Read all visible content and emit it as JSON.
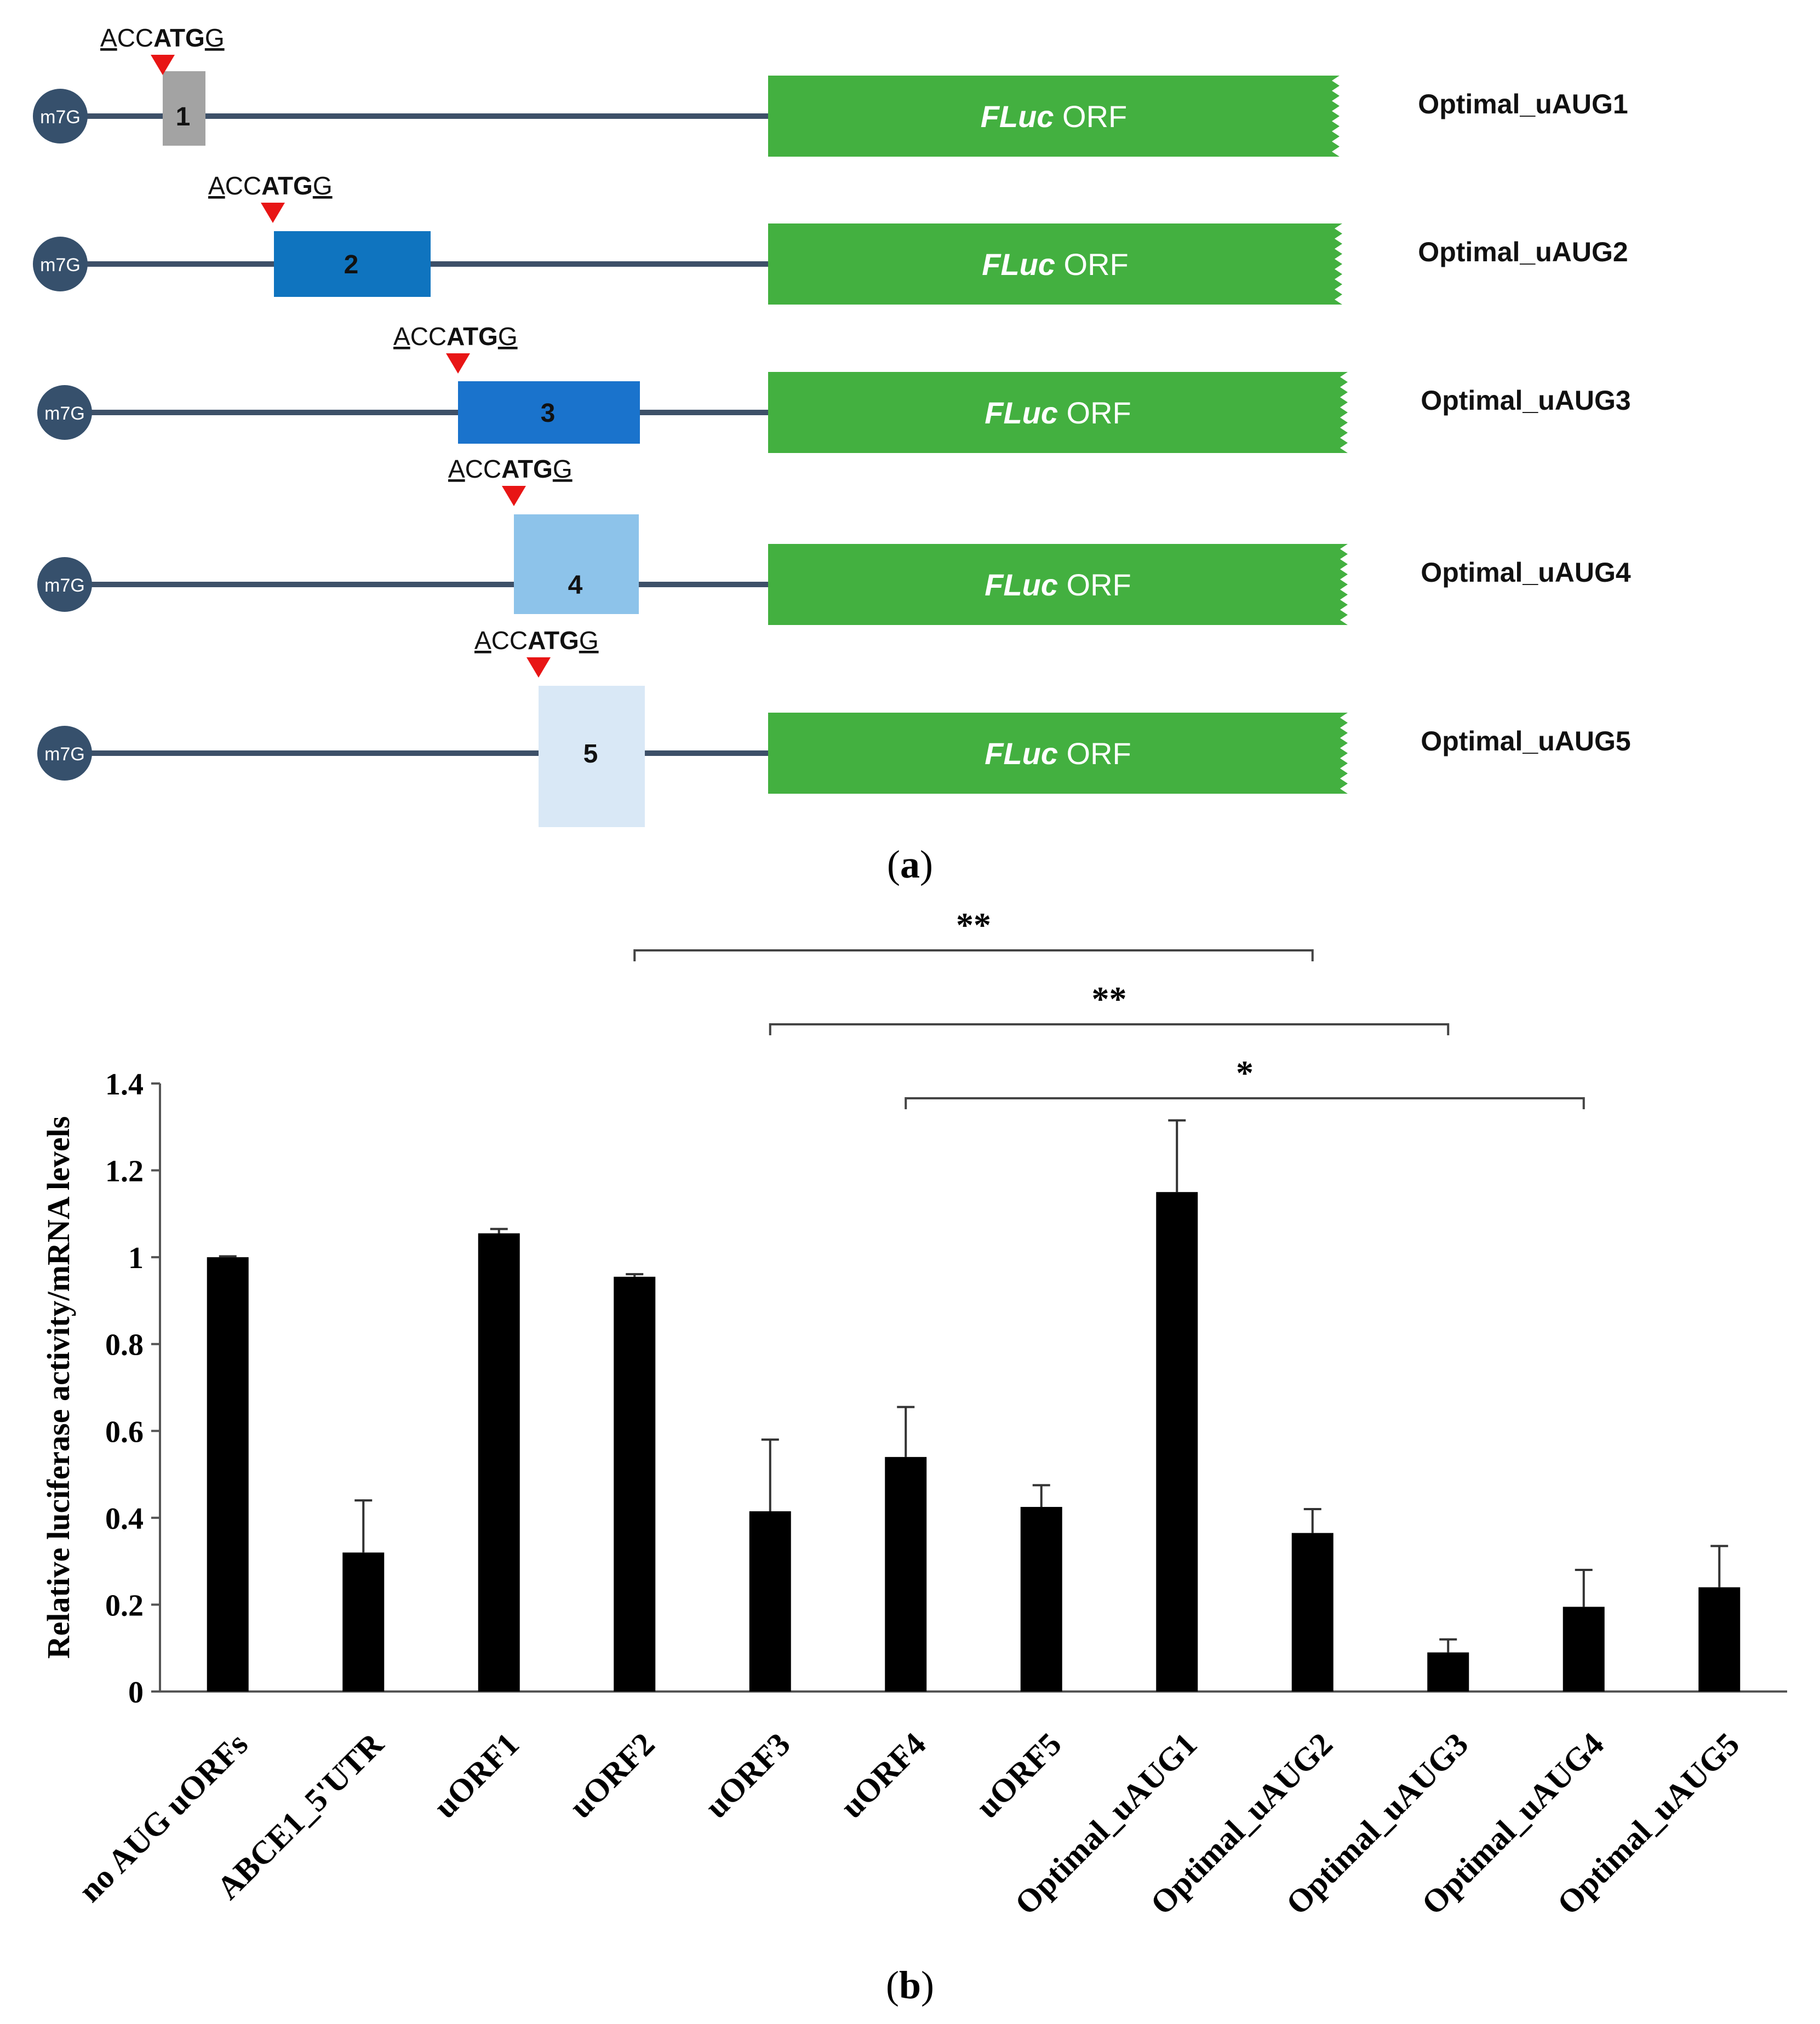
{
  "panel_a": {
    "label": "a",
    "cap_label": "m7G",
    "orf_label_italic": "FLuc",
    "orf_label_plain": "ORF",
    "constructs": [
      {
        "number": "1",
        "name": "Optimal_uAUG1",
        "color": "#a3a3a3"
      },
      {
        "number": "2",
        "name": "Optimal_uAUG2",
        "color": "#0f74bf"
      },
      {
        "number": "3",
        "name": "Optimal_uAUG3",
        "color": "#1a73cc"
      },
      {
        "number": "4",
        "name": "Optimal_uAUG4",
        "color": "#8dc3ea"
      },
      {
        "number": "5",
        "name": "Optimal_uAUG5",
        "color": "#d9e8f6"
      }
    ],
    "kozak": {
      "a": "A",
      "cc": "CC",
      "atg": "ATG",
      "g": "G"
    },
    "colors": {
      "orf": "#43b040",
      "line": "#3d5068",
      "cap": "#36506c",
      "marker": "#e81515"
    }
  },
  "panel_b": {
    "label": "b"
  },
  "chart_data": {
    "type": "bar",
    "title": "",
    "xlabel": "",
    "ylabel": "Relative luciferase activity/mRNA levels",
    "ylim": [
      0,
      1.4
    ],
    "yticks": [
      0,
      0.2,
      0.4,
      0.6,
      0.8,
      1,
      1.2,
      1.4
    ],
    "ytick_labels": [
      "0",
      "0.2",
      "0.4",
      "0.6",
      "0.8",
      "1",
      "1.2",
      "1.4"
    ],
    "grid": false,
    "bar_color": "#000000",
    "categories": [
      "no AUG uORFs",
      "ABCE1_5'UTR",
      "uORF1",
      "uORF2",
      "uORF3",
      "uORF4",
      "uORF5",
      "Optimal_uAUG1",
      "Optimal_uAUG2",
      "Optimal_uAUG3",
      "Optimal_uAUG4",
      "Optimal_uAUG5"
    ],
    "values": [
      1.0,
      0.32,
      1.055,
      0.955,
      0.415,
      0.54,
      0.425,
      1.15,
      0.365,
      0.09,
      0.195,
      0.24
    ],
    "errors": [
      0.002,
      0.12,
      0.01,
      0.006,
      0.165,
      0.115,
      0.05,
      0.165,
      0.055,
      0.03,
      0.085,
      0.095
    ],
    "significance": [
      {
        "from": "uORF2",
        "to": "Optimal_uAUG2",
        "label": "**"
      },
      {
        "from": "uORF3",
        "to": "Optimal_uAUG3",
        "label": "**"
      },
      {
        "from": "uORF4",
        "to": "Optimal_uAUG4",
        "label": "*"
      }
    ]
  }
}
